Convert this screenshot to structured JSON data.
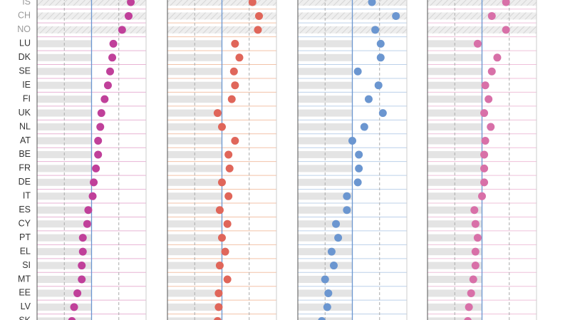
{
  "chart_data": {
    "type": "dot",
    "categories": [
      "IS",
      "CH",
      "NO",
      "LU",
      "DK",
      "SE",
      "IE",
      "FI",
      "UK",
      "NL",
      "AT",
      "BE",
      "FR",
      "DE",
      "IT",
      "ES",
      "CY",
      "PT",
      "EL",
      "SI",
      "MT",
      "EE",
      "LV",
      "SK"
    ],
    "xlim": [
      0,
      100
    ],
    "gridlines": [
      25,
      75
    ],
    "reference": 50,
    "series": [
      {
        "color": "#c0409a",
        "row_color": "#e8b3d4",
        "values": [
          86,
          84,
          78,
          70,
          69,
          67,
          65,
          62,
          59,
          58,
          56,
          56,
          54,
          52,
          51,
          47,
          46,
          42,
          42,
          41,
          41,
          37,
          34,
          32
        ]
      },
      {
        "color": "#e0665a",
        "row_color": "#f3c2a8",
        "values": [
          78,
          84,
          83,
          62,
          66,
          61,
          62,
          59,
          46,
          50,
          62,
          56,
          57,
          50,
          56,
          48,
          55,
          50,
          53,
          48,
          55,
          47,
          47,
          46
        ]
      },
      {
        "color": "#6b96d0",
        "row_color": "#bcd0ea",
        "values": [
          68,
          90,
          71,
          76,
          76,
          55,
          74,
          65,
          78,
          61,
          50,
          56,
          56,
          55,
          45,
          45,
          35,
          37,
          31,
          33,
          25,
          28,
          27,
          22
        ]
      },
      {
        "color": "#d870a8",
        "row_color": "#efc0da",
        "values": [
          72,
          59,
          72,
          46,
          64,
          59,
          53,
          56,
          52,
          58,
          53,
          52,
          52,
          52,
          50,
          43,
          44,
          46,
          44,
          44,
          42,
          40,
          38,
          37
        ]
      }
    ]
  }
}
